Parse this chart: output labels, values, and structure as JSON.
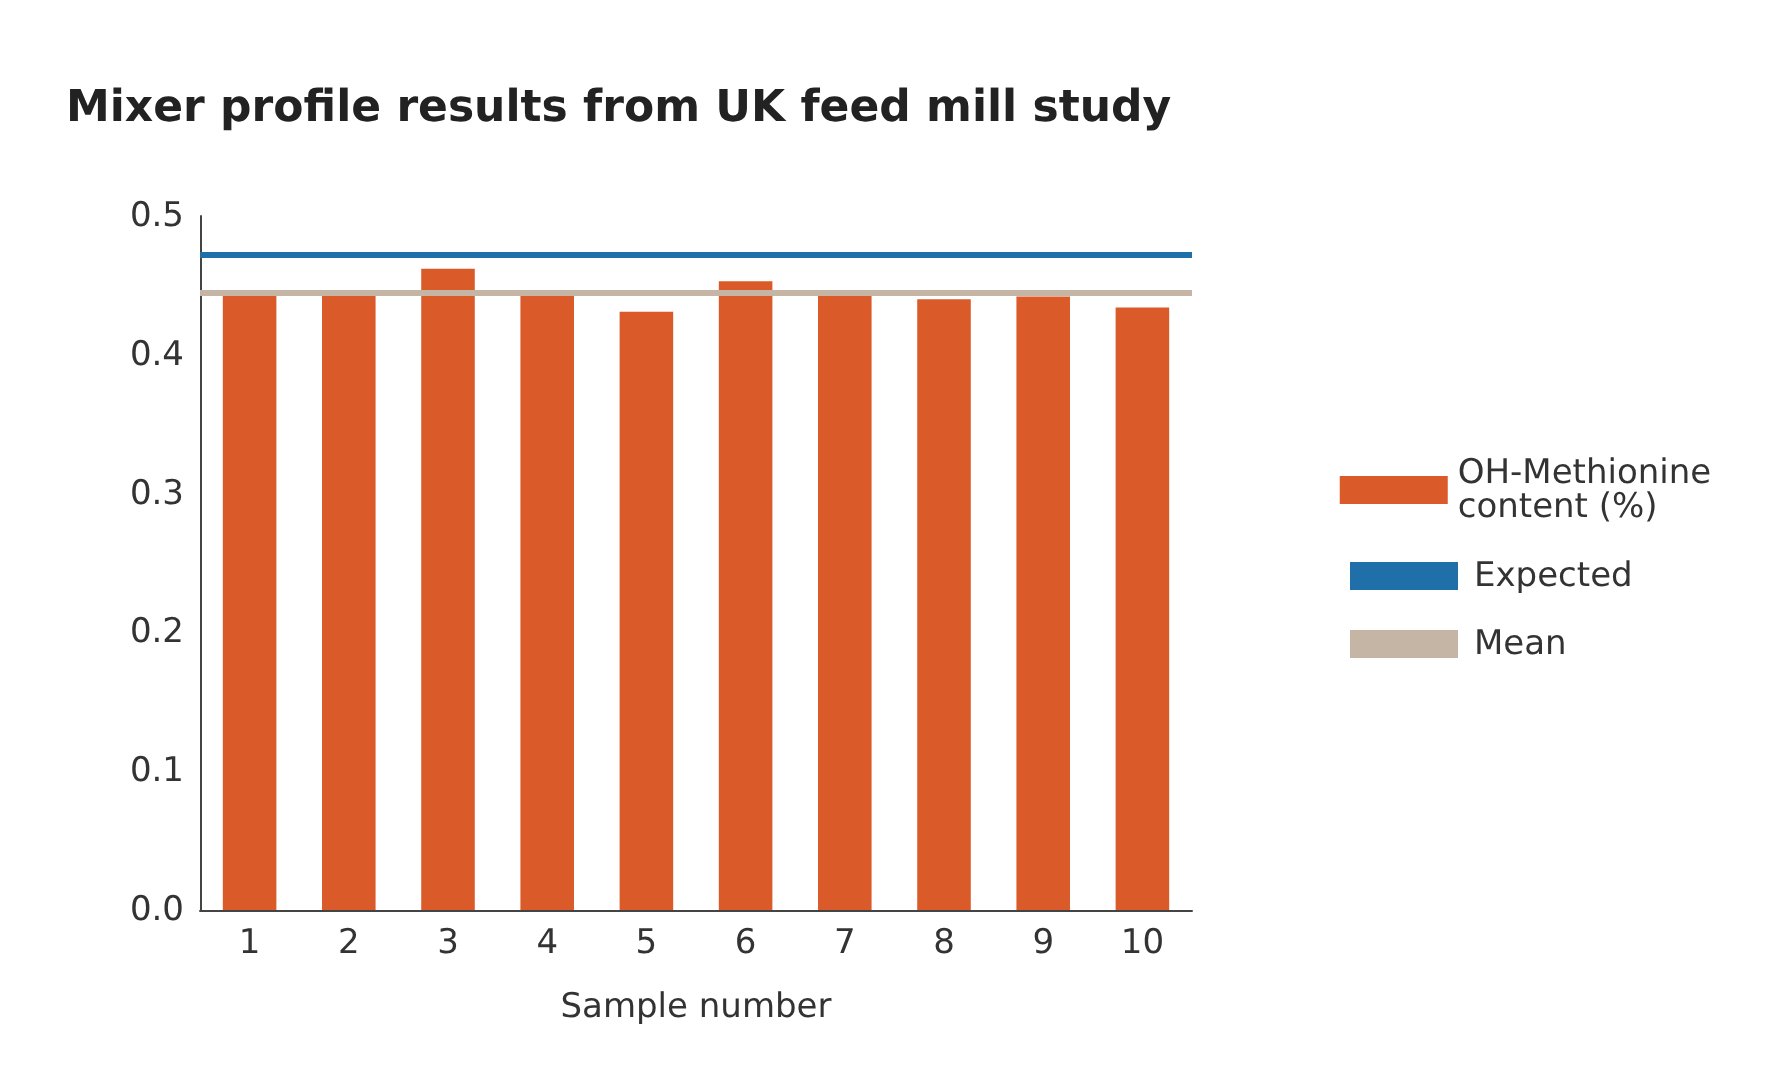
{
  "chart_data": {
    "type": "bar",
    "title": "Mixer profile results from UK feed mill study",
    "xlabel": "Sample number",
    "categories": [
      "1",
      "2",
      "3",
      "4",
      "5",
      "6",
      "7",
      "8",
      "9",
      "10"
    ],
    "series": [
      {
        "name": "OH-Methionine content (%)",
        "color": "#db5a29",
        "values": [
          0.444,
          0.444,
          0.462,
          0.444,
          0.431,
          0.453,
          0.444,
          0.44,
          0.442,
          0.434
        ]
      }
    ],
    "ref_lines": [
      {
        "axis": "y",
        "value": 0.472,
        "label": "Expected",
        "color": "#1f6fa8"
      },
      {
        "axis": "y",
        "value": 0.445,
        "label": "Mean",
        "color": "#c4b5a4"
      }
    ],
    "ylim": [
      0,
      0.5
    ],
    "yticks": [
      {
        "value": 0,
        "label": "0.0"
      },
      0.1,
      0.2,
      0.3,
      0.4,
      0.5
    ],
    "grid": false,
    "legend": "right"
  }
}
